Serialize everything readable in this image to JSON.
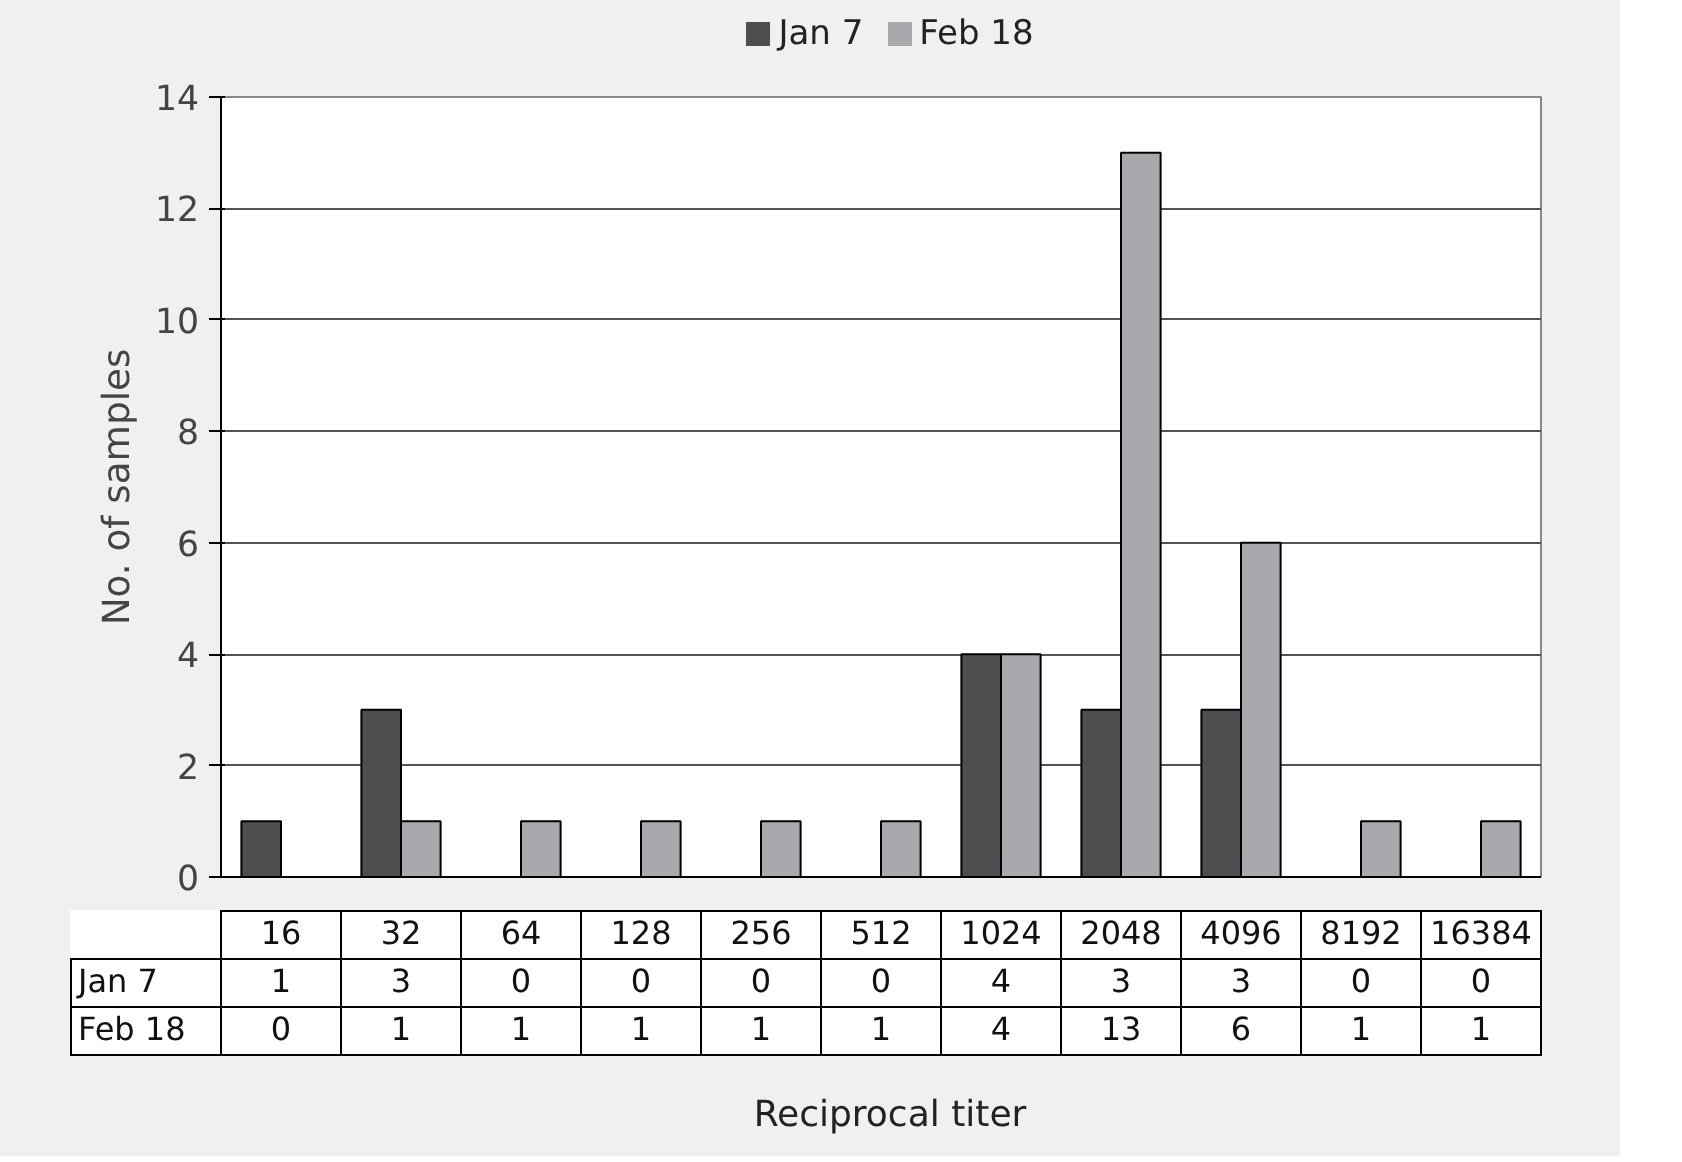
{
  "chart_data": {
    "type": "bar",
    "xlabel": "Reciprocal titer",
    "ylabel": "No. of samples",
    "categories": [
      "16",
      "32",
      "64",
      "128",
      "256",
      "512",
      "1024",
      "2048",
      "4096",
      "8192",
      "16384"
    ],
    "series": [
      {
        "name": "Jan 7",
        "color": "#4d4d4f",
        "values": [
          1,
          3,
          0,
          0,
          0,
          0,
          4,
          3,
          3,
          0,
          0
        ]
      },
      {
        "name": "Feb 18",
        "color": "#a7a9ac",
        "values": [
          0,
          1,
          1,
          1,
          1,
          1,
          4,
          13,
          6,
          1,
          1
        ]
      }
    ],
    "ylim": [
      0,
      14
    ],
    "yticks": [
      0,
      2,
      4,
      6,
      8,
      10,
      12,
      14
    ],
    "grid": "y",
    "legend": "top",
    "data_labels": true
  }
}
